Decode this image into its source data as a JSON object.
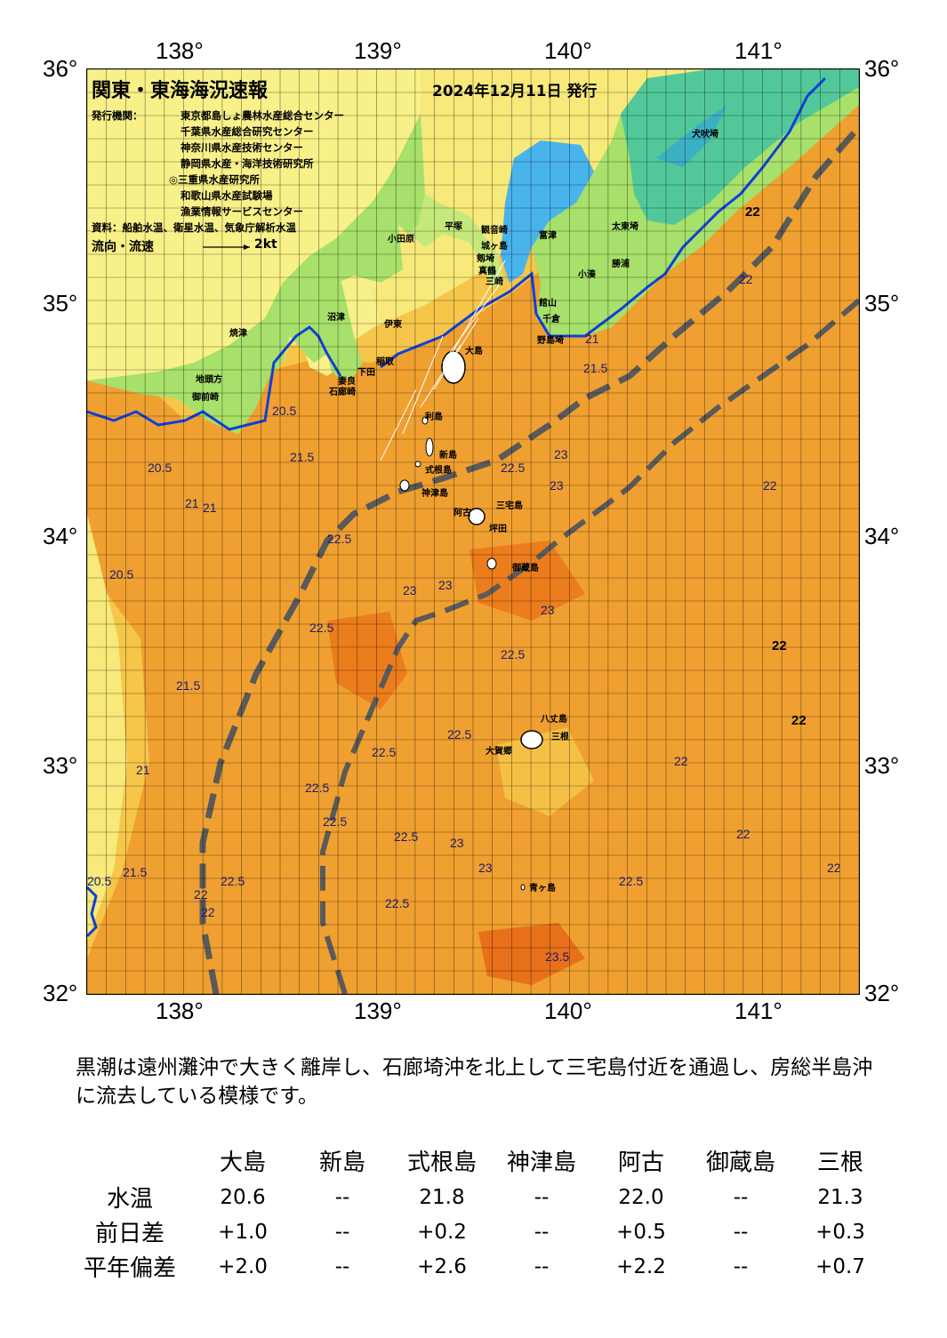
{
  "map": {
    "title": "関東・東海海況速報",
    "date": "2024年12月11日 発行",
    "issuer_label": "発行機関：",
    "issuers": [
      "東京都島しょ農林水産総合センター",
      "千葉県水産総合研究センター",
      "神奈川県水産技術センター",
      "静岡県水産・海洋技術研究所",
      "◎三重県水産研究所",
      "和歌山県水産試験場",
      "漁業情報サービスセンター"
    ],
    "source": "資料：船舶水温、衛星水温、気象庁解析水温",
    "flow_label": "流向・流速",
    "flow_scale": "2kt",
    "lon_labels": [
      "138°",
      "139°",
      "140°",
      "141°"
    ],
    "lat_labels": [
      "36°",
      "35°",
      "34°",
      "33°",
      "32°"
    ],
    "colors": {
      "warm_water": "#f0a030",
      "warmest": "#ec7d1c",
      "mid_water": "#f6c64a",
      "cool_water": "#f7e97a",
      "coast_green": "#a7e06a",
      "land_teal": "#52c89a",
      "lake_blue": "#49b3ec",
      "kuroshio_axis": "#5a5a5a",
      "river_blue": "#1040d8"
    },
    "places": [
      {
        "name": "犬吠埼"
      },
      {
        "name": "太東埼"
      },
      {
        "name": "勝浦"
      },
      {
        "name": "小湊"
      },
      {
        "name": "千倉"
      },
      {
        "name": "野島埼"
      },
      {
        "name": "館山"
      },
      {
        "name": "富津"
      },
      {
        "name": "観音崎"
      },
      {
        "name": "剱埼"
      },
      {
        "name": "三崎"
      },
      {
        "name": "城ヶ島"
      },
      {
        "name": "平塚"
      },
      {
        "name": "小田原"
      },
      {
        "name": "真鶴"
      },
      {
        "name": "伊東"
      },
      {
        "name": "稲取"
      },
      {
        "name": "下田"
      },
      {
        "name": "石廊崎"
      },
      {
        "name": "妻良"
      },
      {
        "name": "御前崎"
      },
      {
        "name": "地頭方"
      },
      {
        "name": "焼津"
      },
      {
        "name": "沼津"
      },
      {
        "name": "大島"
      },
      {
        "name": "利島"
      },
      {
        "name": "新島"
      },
      {
        "name": "式根島"
      },
      {
        "name": "神津島"
      },
      {
        "name": "三宅島"
      },
      {
        "name": "阿古"
      },
      {
        "name": "坪田"
      },
      {
        "name": "御蔵島"
      },
      {
        "name": "八丈島"
      },
      {
        "name": "三根"
      },
      {
        "name": "大賀郷"
      },
      {
        "name": "青ヶ島"
      }
    ],
    "contour_labels": [
      "22",
      "22",
      "22",
      "22",
      "22",
      "22",
      "22",
      "21.5",
      "21",
      "20.5",
      "20.5",
      "20.5",
      "21.5",
      "21",
      "21.5",
      "21",
      "22.5",
      "22.5",
      "23",
      "23",
      "23",
      "23",
      "23",
      "22.5",
      "22.5",
      "22.5",
      "22.5",
      "22.5",
      "22.5",
      "22.5",
      "22.5",
      "22.5",
      "22.5",
      "23",
      "23",
      "23.5",
      "22",
      "22",
      "22",
      "21.5",
      "21",
      "20.5"
    ]
  },
  "summary": "黒潮は遠州灘沖で大きく離岸し、石廊埼沖を北上して三宅島付近を通過し、房総半島沖に流去している模様です。",
  "stats": {
    "stations": [
      "大島",
      "新島",
      "式根島",
      "神津島",
      "阿古",
      "御蔵島",
      "三根"
    ],
    "rows": [
      {
        "label": "水温",
        "values": [
          "20.6",
          "--",
          "21.8",
          "--",
          "22.0",
          "--",
          "21.3"
        ]
      },
      {
        "label": "前日差",
        "values": [
          "+1.0",
          "--",
          "+0.2",
          "--",
          "+0.5",
          "--",
          "+0.3"
        ]
      },
      {
        "label": "平年偏差",
        "values": [
          "+2.0",
          "--",
          "+2.6",
          "--",
          "+2.2",
          "--",
          "+0.7"
        ]
      }
    ]
  }
}
